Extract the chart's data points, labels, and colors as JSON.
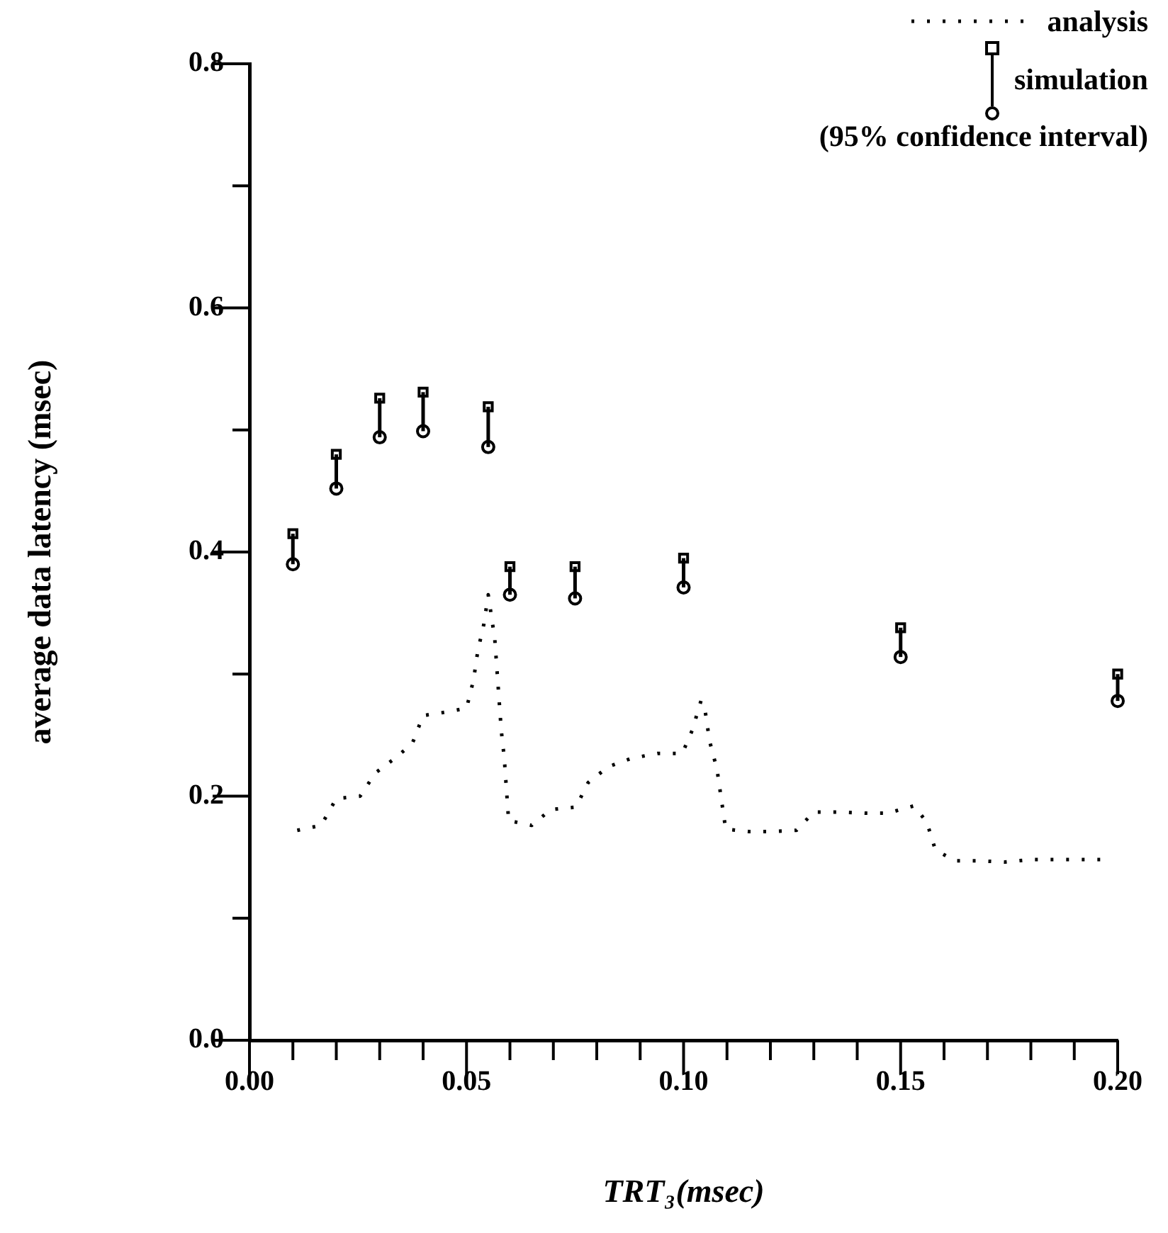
{
  "chart_data": {
    "type": "line",
    "xlabel": "TRT₃(msec)",
    "ylabel": "average data latency (msec)",
    "xlim": [
      0,
      0.2
    ],
    "ylim": [
      0,
      0.8
    ],
    "xticks": [
      {
        "value": 0,
        "label": "0.00"
      },
      {
        "value": 0.01,
        "label": null
      },
      {
        "value": 0.02,
        "label": null
      },
      {
        "value": 0.03,
        "label": null
      },
      {
        "value": 0.04,
        "label": null
      },
      0.05,
      {
        "value": 0.06,
        "label": null
      },
      {
        "value": 0.07,
        "label": null
      },
      {
        "value": 0.08,
        "label": null
      },
      {
        "value": 0.09,
        "label": null
      },
      {
        "value": 0.1,
        "label": "0.10"
      },
      {
        "value": 0.11,
        "label": null
      },
      {
        "value": 0.12,
        "label": null
      },
      {
        "value": 0.13,
        "label": null
      },
      {
        "value": 0.14,
        "label": null
      },
      0.15,
      {
        "value": 0.16,
        "label": null
      },
      {
        "value": 0.17,
        "label": null
      },
      {
        "value": 0.18,
        "label": null
      },
      {
        "value": 0.19,
        "label": null
      },
      {
        "value": 0.2,
        "label": "0.20"
      }
    ],
    "yticks": [
      {
        "value": 0,
        "label": "0.0"
      },
      {
        "value": 0.1,
        "label": null
      },
      0.2,
      {
        "value": 0.3,
        "label": null
      },
      0.4,
      {
        "value": 0.5,
        "label": null
      },
      0.6,
      {
        "value": 0.7,
        "label": null
      },
      0.8
    ],
    "grid": false,
    "legend": "top right",
    "annotations": [
      "(95% confidence interval)"
    ],
    "series": [
      {
        "name": "analysis",
        "type": "line",
        "color": "#000000",
        "line_style": "dotted",
        "x": [
          0.011,
          0.0165,
          0.02,
          0.0255,
          0.029,
          0.0335,
          0.0375,
          0.04,
          0.0455,
          0.05,
          0.0516,
          0.0526,
          0.054,
          0.055,
          0.0565,
          0.057,
          0.058,
          0.0587,
          0.0597,
          0.065,
          0.0694,
          0.0752,
          0.078,
          0.0826,
          0.088,
          0.094,
          0.0997,
          0.102,
          0.104,
          0.105,
          0.106,
          0.1077,
          0.1097,
          0.115,
          0.12,
          0.126,
          0.13,
          0.136,
          0.142,
          0.147,
          0.153,
          0.156,
          0.158,
          0.1625,
          0.168,
          0.174,
          0.18,
          0.186,
          0.191,
          0.197
        ],
        "values": [
          0.172,
          0.176,
          0.198,
          0.2,
          0.219,
          0.231,
          0.243,
          0.266,
          0.269,
          0.272,
          0.295,
          0.319,
          0.341,
          0.365,
          0.329,
          0.304,
          0.254,
          0.231,
          0.18,
          0.176,
          0.189,
          0.191,
          0.211,
          0.224,
          0.231,
          0.235,
          0.235,
          0.254,
          0.278,
          0.269,
          0.245,
          0.222,
          0.173,
          0.171,
          0.171,
          0.172,
          0.187,
          0.187,
          0.186,
          0.186,
          0.192,
          0.179,
          0.156,
          0.147,
          0.147,
          0.146,
          0.148,
          0.148,
          0.148,
          0.148
        ]
      },
      {
        "name": "simulation",
        "type": "scatter",
        "color": "#000000",
        "marker": "square",
        "x": [
          0.01,
          0.02,
          0.03,
          0.04,
          0.055,
          0.06,
          0.075,
          0.1,
          0.15,
          0.2
        ],
        "values": [
          0.415,
          0.48,
          0.526,
          0.531,
          0.519,
          0.388,
          0.388,
          0.395,
          0.338,
          0.3
        ],
        "errors": [
          [
            0.39,
            0.415
          ],
          [
            0.452,
            0.48
          ],
          [
            0.494,
            0.526
          ],
          [
            0.499,
            0.531
          ],
          [
            0.486,
            0.519
          ],
          [
            0.365,
            0.388
          ],
          [
            0.362,
            0.388
          ],
          [
            0.371,
            0.395
          ],
          [
            0.314,
            0.338
          ],
          [
            0.278,
            0.3
          ]
        ]
      },
      {
        "type": "scatter",
        "color": "#000000",
        "marker": "circle",
        "x": [
          0.01,
          0.02,
          0.03,
          0.04,
          0.055,
          0.06,
          0.075,
          0.1,
          0.15,
          0.2
        ],
        "values": [
          0.39,
          0.452,
          0.494,
          0.499,
          0.486,
          0.365,
          0.362,
          0.371,
          0.314,
          0.278
        ]
      }
    ]
  }
}
